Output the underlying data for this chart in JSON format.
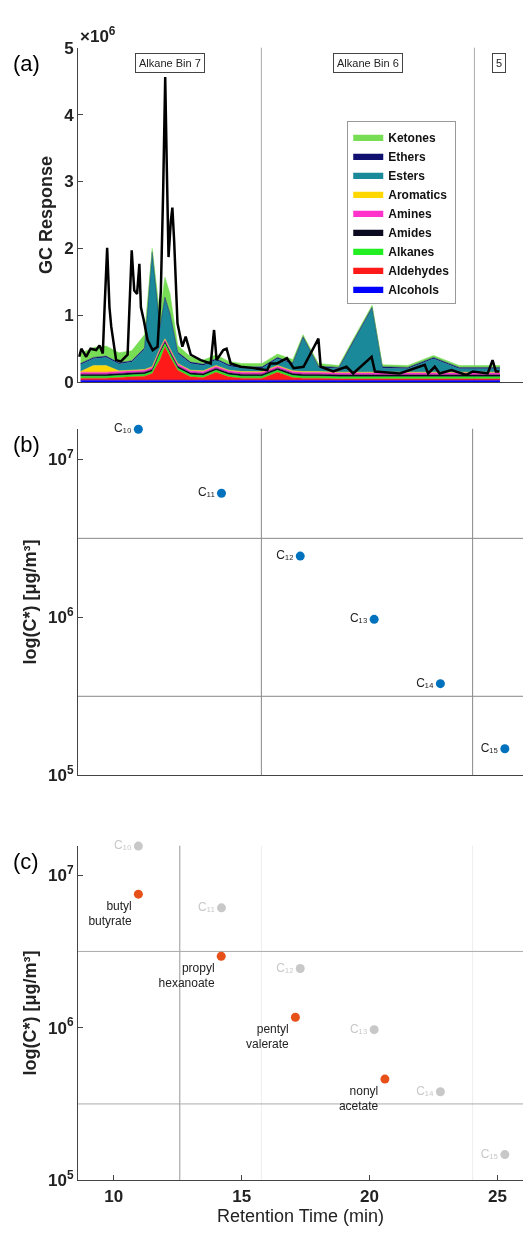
{
  "chart_data": [
    {
      "type": "area",
      "title": "(a)",
      "ylabel": "GC Response",
      "stacked": true,
      "legend": "right",
      "tick_labels": "y",
      "marker": "none",
      "xlim": [
        8.6,
        26.0
      ],
      "ylim": [
        0,
        5
      ],
      "yticks": [
        0,
        1,
        2,
        3,
        4,
        5
      ],
      "x": [
        8.7,
        9.2,
        9.7,
        10.2,
        10.7,
        11.2,
        11.5,
        11.8,
        12.0,
        12.2,
        12.5,
        13.0,
        13.5,
        14.0,
        14.5,
        15.0,
        15.8,
        16.4,
        17.0,
        17.4,
        18.0,
        18.8,
        19.3,
        20.1,
        20.5,
        21.5,
        22.5,
        23.5,
        24.5,
        25.1
      ],
      "series": [
        {
          "name": "Alcohols",
          "color": "#0000ff",
          "values": [
            0.03,
            0.03,
            0.03,
            0.03,
            0.03,
            0.03,
            0.03,
            0.03,
            0.03,
            0.03,
            0.03,
            0.03,
            0.03,
            0.03,
            0.03,
            0.03,
            0.03,
            0.03,
            0.03,
            0.03,
            0.03,
            0.03,
            0.03,
            0.03,
            0.03,
            0.03,
            0.03,
            0.03,
            0.03,
            0.03
          ]
        },
        {
          "name": "Aldehydes",
          "color": "#ff1a1a",
          "values": [
            0.03,
            0.03,
            0.03,
            0.04,
            0.05,
            0.06,
            0.1,
            0.3,
            0.5,
            0.35,
            0.15,
            0.05,
            0.04,
            0.12,
            0.05,
            0.03,
            0.03,
            0.12,
            0.04,
            0.03,
            0.03,
            0.02,
            0.02,
            0.02,
            0.02,
            0.02,
            0.02,
            0.02,
            0.02,
            0.02
          ]
        },
        {
          "name": "Alkanes",
          "color": "#22ee22",
          "values": [
            0.03,
            0.03,
            0.03,
            0.03,
            0.03,
            0.03,
            0.03,
            0.1,
            0.05,
            0.05,
            0.03,
            0.03,
            0.03,
            0.03,
            0.03,
            0.03,
            0.03,
            0.03,
            0.03,
            0.03,
            0.03,
            0.03,
            0.03,
            0.03,
            0.03,
            0.03,
            0.03,
            0.03,
            0.03,
            0.03
          ]
        },
        {
          "name": "Amides",
          "color": "#0a0a20",
          "values": [
            0.03,
            0.03,
            0.03,
            0.03,
            0.03,
            0.03,
            0.03,
            0.03,
            0.03,
            0.03,
            0.03,
            0.03,
            0.03,
            0.03,
            0.03,
            0.03,
            0.03,
            0.03,
            0.03,
            0.03,
            0.03,
            0.03,
            0.03,
            0.03,
            0.03,
            0.03,
            0.03,
            0.03,
            0.03,
            0.03
          ]
        },
        {
          "name": "Amines",
          "color": "#ff33cc",
          "values": [
            0.03,
            0.03,
            0.03,
            0.03,
            0.03,
            0.03,
            0.03,
            0.03,
            0.03,
            0.03,
            0.03,
            0.03,
            0.03,
            0.03,
            0.03,
            0.03,
            0.03,
            0.03,
            0.03,
            0.03,
            0.03,
            0.03,
            0.03,
            0.03,
            0.03,
            0.03,
            0.03,
            0.03,
            0.03,
            0.03
          ]
        },
        {
          "name": "Aromatics",
          "color": "#ffd700",
          "values": [
            0.01,
            0.1,
            0.1,
            0.01,
            0.01,
            0.01,
            0.01,
            0.01,
            0.01,
            0.01,
            0.01,
            0.01,
            0.01,
            0.01,
            0.01,
            0.01,
            0.01,
            0.01,
            0.01,
            0.01,
            0.01,
            0.01,
            0.01,
            0.01,
            0.01,
            0.01,
            0.01,
            0.01,
            0.01,
            0.01
          ]
        },
        {
          "name": "Esters",
          "color": "#1a8a9a",
          "values": [
            0.1,
            0.1,
            0.12,
            0.1,
            0.12,
            0.3,
            1.7,
            0.3,
            0.6,
            0.5,
            0.15,
            0.1,
            0.08,
            0.08,
            0.06,
            0.05,
            0.05,
            0.1,
            0.1,
            0.5,
            0.06,
            0.05,
            0.4,
            0.95,
            0.06,
            0.05,
            0.2,
            0.05,
            0.05,
            0.05
          ]
        },
        {
          "name": "Ethers",
          "color": "#101070",
          "values": [
            0.02,
            0.02,
            0.02,
            0.02,
            0.02,
            0.02,
            0.02,
            0.02,
            0.02,
            0.02,
            0.02,
            0.02,
            0.02,
            0.02,
            0.02,
            0.02,
            0.02,
            0.02,
            0.02,
            0.02,
            0.02,
            0.02,
            0.02,
            0.02,
            0.02,
            0.02,
            0.02,
            0.02,
            0.02,
            0.02
          ]
        },
        {
          "name": "Ketones",
          "color": "#77dd55",
          "values": [
            0.15,
            0.15,
            0.15,
            0.15,
            0.15,
            0.2,
            0.05,
            0.2,
            0.3,
            0.3,
            0.1,
            0.08,
            0.06,
            0.06,
            0.05,
            0.05,
            0.05,
            0.05,
            0.05,
            0.03,
            0.04,
            0.03,
            0.03,
            0.03,
            0.03,
            0.03,
            0.03,
            0.03,
            0.03,
            0.03
          ]
        },
        {
          "type": "line",
          "color": "#000000",
          "x": [
            8.65,
            8.73,
            8.92,
            9.09,
            9.31,
            9.44,
            9.57,
            9.64,
            9.74,
            9.83,
            9.9,
            10.09,
            10.28,
            10.54,
            10.7,
            10.8,
            10.91,
            11.0,
            11.06,
            11.17,
            11.32,
            11.52,
            11.71,
            11.84,
            11.93,
            12.01,
            12.07,
            12.14,
            12.23,
            12.29,
            12.36,
            12.49,
            12.68,
            12.81,
            13.01,
            13.4,
            13.79,
            13.92,
            14.02,
            14.28,
            14.41,
            14.57,
            14.96,
            15.48,
            16.0,
            16.12,
            16.38,
            16.77,
            17.03,
            17.42,
            18.0,
            18.09,
            18.58,
            19.1,
            19.36,
            20.08,
            20.21,
            21.18,
            22.16,
            22.29,
            22.55,
            22.74,
            23.2,
            23.78,
            24.04,
            24.62,
            24.81,
            24.94,
            25.07
          ],
          "values": [
            0.38,
            0.5,
            0.38,
            0.5,
            0.48,
            0.55,
            0.43,
            1.12,
            2.01,
            1.12,
            0.83,
            0.33,
            0.31,
            0.41,
            1.97,
            1.37,
            1.32,
            1.77,
            1.12,
            0.93,
            0.63,
            0.48,
            0.53,
            1.37,
            2.86,
            4.56,
            3.26,
            1.87,
            2.41,
            2.61,
            2.11,
            0.88,
            0.53,
            0.68,
            0.41,
            0.33,
            0.28,
            0.78,
            0.33,
            0.48,
            0.5,
            0.28,
            0.23,
            0.21,
            0.18,
            0.28,
            0.28,
            0.36,
            0.21,
            0.23,
            0.65,
            0.23,
            0.16,
            0.23,
            0.13,
            0.38,
            0.16,
            0.13,
            0.26,
            0.13,
            0.23,
            0.13,
            0.18,
            0.11,
            0.16,
            0.13,
            0.33,
            0.16,
            0.16
          ]
        }
      ],
      "ref_lines": [
        {
          "axis": "x",
          "value": 15.77,
          "color": "#aaaaaa"
        },
        {
          "axis": "x",
          "value": 24.1,
          "color": "#aaaaaa"
        }
      ],
      "annotations": [
        "×10$^{6}$",
        "Alkane Bin 7",
        "Alkane Bin 6",
        "5"
      ]
    },
    {
      "type": "scatter",
      "title": "(b)",
      "ylabel": "log(C*) [μg/m³]",
      "log": true,
      "tick_labels": "y",
      "marker": "circle",
      "xlim": [
        8.6,
        26.0
      ],
      "ylim": [
        100000,
        15600000
      ],
      "yticks": [
        {
          "value": 100000,
          "label": "10$^{5}$"
        },
        {
          "value": 1000000,
          "label": "10$^{6}$"
        },
        {
          "value": 10000000,
          "label": "10$^{7}$"
        }
      ],
      "series": [
        {
          "color": "#0072bd",
          "x": [
            10.96,
            14.21,
            17.29,
            20.18,
            22.77,
            25.29
          ],
          "values": [
            15500000,
            6100000,
            2440000,
            970000,
            380000,
            147000
          ],
          "value_labels": [
            "C₁₀",
            "C₁₁",
            "C₁₂",
            "C₁₃",
            "C₁₄",
            "C₁₅"
          ]
        }
      ],
      "ref_lines": [
        {
          "axis": "x",
          "value": 15.77,
          "color": "#888888"
        },
        {
          "axis": "x",
          "value": 24.03,
          "color": "#888888"
        },
        {
          "axis": "y",
          "value": 3160000,
          "color": "#888888"
        },
        {
          "axis": "y",
          "value": 316000,
          "color": "#888888"
        }
      ]
    },
    {
      "type": "scatter",
      "title": "(c)",
      "ylabel": "log(C*) [μg/m³]",
      "xlabel": "Retention Time (min)",
      "log": true,
      "marker": "circle",
      "xlim": [
        8.6,
        26.0
      ],
      "xticks": [
        10,
        15,
        20,
        25
      ],
      "ylim": [
        100000,
        15600000
      ],
      "yticks": [
        {
          "value": 100000,
          "label": "10$^{5}$"
        },
        {
          "value": 1000000,
          "label": "10$^{6}$"
        },
        {
          "value": 10000000,
          "label": "10$^{7}$"
        }
      ],
      "series": [
        {
          "color": "#c8c8c8",
          "x": [
            10.96,
            14.21,
            17.29,
            20.18,
            22.77,
            25.29
          ],
          "values": [
            15500000,
            6100000,
            2440000,
            970000,
            380000,
            147000
          ],
          "value_labels": [
            "C₁₀",
            "C₁₁",
            "C₁₂",
            "C₁₃",
            "C₁₄",
            "C₁₅"
          ]
        },
        {
          "color": "#e8501a",
          "x": [
            10.96,
            14.2,
            17.1,
            20.6
          ],
          "values": [
            7500000,
            2940000,
            1170000,
            460000
          ],
          "value_labels": [
            "butyl\nbutyrate",
            "propyl\nhexanoate",
            "pentyl\nvalerate",
            "nonyl\nacetate"
          ]
        }
      ],
      "ref_lines": [
        {
          "axis": "x",
          "value": 12.58,
          "color": "#999999"
        },
        {
          "axis": "x",
          "value": 15.77,
          "color": "#eeeeee"
        },
        {
          "axis": "x",
          "value": 24.03,
          "color": "#eeeeee"
        },
        {
          "axis": "y",
          "value": 3160000,
          "color": "#aaaaaa"
        },
        {
          "axis": "y",
          "value": 316000,
          "color": "#aaaaaa"
        }
      ]
    }
  ]
}
